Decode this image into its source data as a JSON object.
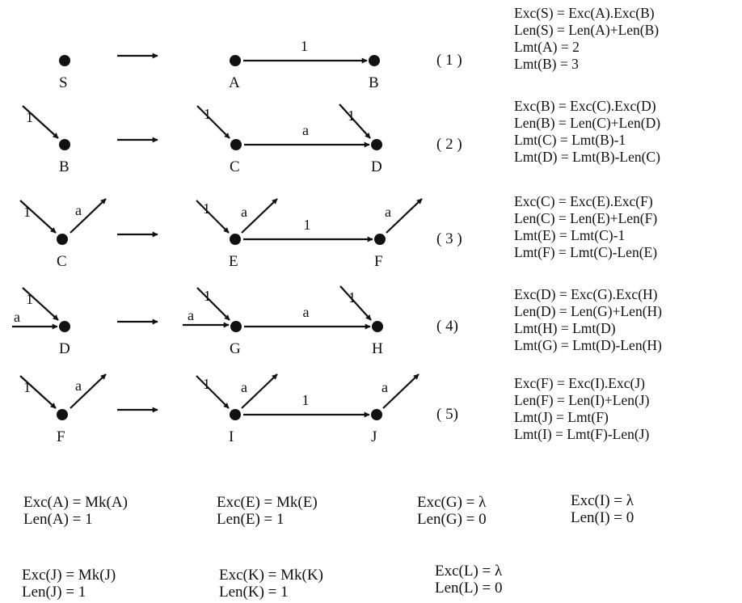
{
  "rules": [
    {
      "number": "( 1 )",
      "lhs": {
        "node": "S"
      },
      "rhs": {
        "left": "A",
        "right": "B",
        "edge": "1"
      },
      "equations": [
        "Exc(S) = Exc(A).Exc(B)",
        "Len(S) = Len(A)+Len(B)",
        "Lmt(A) = 2",
        "Lmt(B) = 3"
      ]
    },
    {
      "number": "( 2 )",
      "lhs": {
        "node": "B",
        "in_left": "1"
      },
      "rhs": {
        "left": "C",
        "right": "D",
        "edge": "a",
        "left_in": "1",
        "right_in": "1"
      },
      "equations": [
        "Exc(B) = Exc(C).Exc(D)",
        "Len(B) = Len(C)+Len(D)",
        "Lmt(C) = Lmt(B)-1",
        "Lmt(D) = Lmt(B)-Len(C)"
      ]
    },
    {
      "number": "( 3 )",
      "lhs": {
        "node": "C",
        "in_left": "1",
        "out_right": "a"
      },
      "rhs": {
        "left": "E",
        "right": "F",
        "edge": "1",
        "left_in": "1",
        "left_out": "a",
        "right_out": "a"
      },
      "equations": [
        "Exc(C) = Exc(E).Exc(F)",
        "Len(C) = Len(E)+Len(F)",
        "Lmt(E) = Lmt(C)-1",
        "Lmt(F) = Lmt(C)-Len(E)"
      ]
    },
    {
      "number": "( 4)",
      "lhs": {
        "node": "D",
        "in_left": "1",
        "in_side": "a"
      },
      "rhs": {
        "left": "G",
        "right": "H",
        "edge": "a",
        "left_in": "1",
        "left_side": "a",
        "right_in": "1"
      },
      "equations": [
        "Exc(D) = Exc(G).Exc(H)",
        "Len(D) = Len(G)+Len(H)",
        "Lmt(H) = Lmt(D)",
        "Lmt(G) = Lmt(D)-Len(H)"
      ]
    },
    {
      "number": "( 5)",
      "lhs": {
        "node": "F",
        "in_left": "1",
        "out_right": "a"
      },
      "rhs": {
        "left": "I",
        "right": "J",
        "edge": "1",
        "left_in": "1",
        "left_out": "a",
        "right_out": "a"
      },
      "equations": [
        "Exc(F) = Exc(I).Exc(J)",
        "Len(F) = Len(I)+Len(J)",
        "Lmt(J) = Lmt(F)",
        "Lmt(I) = Lmt(F)-Len(J)"
      ]
    }
  ],
  "base_cases": [
    [
      "Exc(A) = Mk(A)",
      "Len(A) = 1"
    ],
    [
      "Exc(E) = Mk(E)",
      "Len(E) = 1"
    ],
    [
      "Exc(G) = λ",
      "Len(G) = 0"
    ],
    [
      "Exc(I) = λ",
      "Len(I) = 0"
    ],
    [
      "Exc(J) = Mk(J)",
      "Len(J) = 1"
    ],
    [
      "Exc(K) = Mk(K)",
      "Len(K) = 1"
    ],
    [
      "Exc(L) = λ",
      "Len(L) = 0"
    ]
  ]
}
